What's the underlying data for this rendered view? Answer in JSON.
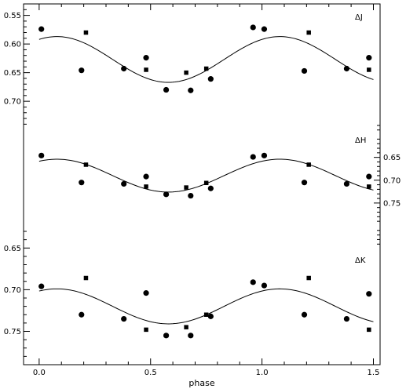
{
  "chart_data": {
    "type": "scatter",
    "xlabel": "phase",
    "xlim": [
      -0.07,
      1.53
    ],
    "x_ticks": [
      "0.0",
      "0.5",
      "1.0",
      "1.5"
    ],
    "x_tick_values": [
      0.0,
      0.5,
      1.0,
      1.5
    ],
    "y_inverted": true,
    "panels": [
      {
        "label": "ΔJ",
        "tick_side": "left",
        "ylim": [
          0.53,
          0.745
        ],
        "y_ticks": [
          "0.55",
          "0.60",
          "0.65",
          "0.70"
        ],
        "y_tick_values": [
          0.55,
          0.6,
          0.65,
          0.7
        ],
        "circles": [
          [
            0.01,
            0.574
          ],
          [
            0.19,
            0.646
          ],
          [
            0.38,
            0.643
          ],
          [
            0.48,
            0.624
          ],
          [
            0.57,
            0.68
          ],
          [
            0.68,
            0.681
          ],
          [
            0.77,
            0.661
          ],
          [
            0.96,
            0.571
          ],
          [
            1.01,
            0.574
          ],
          [
            1.19,
            0.647
          ],
          [
            1.38,
            0.643
          ],
          [
            1.48,
            0.624
          ]
        ],
        "squares": [
          [
            0.21,
            0.58
          ],
          [
            0.48,
            0.645
          ],
          [
            0.66,
            0.65
          ],
          [
            0.75,
            0.643
          ],
          [
            1.21,
            0.58
          ],
          [
            1.48,
            0.645
          ]
        ],
        "fit": {
          "mean": 0.627,
          "amplitude": 0.04,
          "min_phase": 0.58
        }
      },
      {
        "label": "ΔH",
        "tick_side": "right",
        "ylim": [
          0.575,
          0.855
        ],
        "y_ticks": [
          "0.65",
          "0.70",
          "0.75"
        ],
        "y_tick_values": [
          0.65,
          0.7,
          0.75
        ],
        "circles": [
          [
            0.01,
            0.646
          ],
          [
            0.19,
            0.705
          ],
          [
            0.38,
            0.708
          ],
          [
            0.48,
            0.692
          ],
          [
            0.57,
            0.731
          ],
          [
            0.68,
            0.734
          ],
          [
            0.77,
            0.718
          ],
          [
            0.96,
            0.649
          ],
          [
            1.01,
            0.646
          ],
          [
            1.19,
            0.705
          ],
          [
            1.38,
            0.708
          ],
          [
            1.48,
            0.692
          ]
        ],
        "squares": [
          [
            0.21,
            0.666
          ],
          [
            0.48,
            0.714
          ],
          [
            0.66,
            0.716
          ],
          [
            0.75,
            0.706
          ],
          [
            1.21,
            0.666
          ],
          [
            1.48,
            0.714
          ]
        ],
        "fit": {
          "mean": 0.69,
          "amplitude": 0.036,
          "min_phase": 0.58
        }
      },
      {
        "label": "ΔK",
        "tick_side": "left",
        "ylim": [
          0.63,
          0.79
        ],
        "y_ticks": [
          "0.65",
          "0.70",
          "0.75"
        ],
        "y_tick_values": [
          0.65,
          0.7,
          0.75
        ],
        "circles": [
          [
            0.01,
            0.696
          ],
          [
            0.19,
            0.73
          ],
          [
            0.38,
            0.735
          ],
          [
            0.48,
            0.704
          ],
          [
            0.57,
            0.755
          ],
          [
            0.68,
            0.755
          ],
          [
            0.77,
            0.732
          ],
          [
            0.96,
            0.691
          ],
          [
            1.01,
            0.695
          ],
          [
            1.19,
            0.73
          ],
          [
            1.38,
            0.735
          ],
          [
            1.48,
            0.705
          ]
        ],
        "squares": [
          [
            0.21,
            0.686
          ],
          [
            0.48,
            0.748
          ],
          [
            0.66,
            0.745
          ],
          [
            0.75,
            0.73
          ],
          [
            1.21,
            0.686
          ],
          [
            1.48,
            0.748
          ]
        ],
        "fit": {
          "mean": 0.72,
          "amplitude": 0.021,
          "min_phase": 0.58
        }
      }
    ]
  }
}
